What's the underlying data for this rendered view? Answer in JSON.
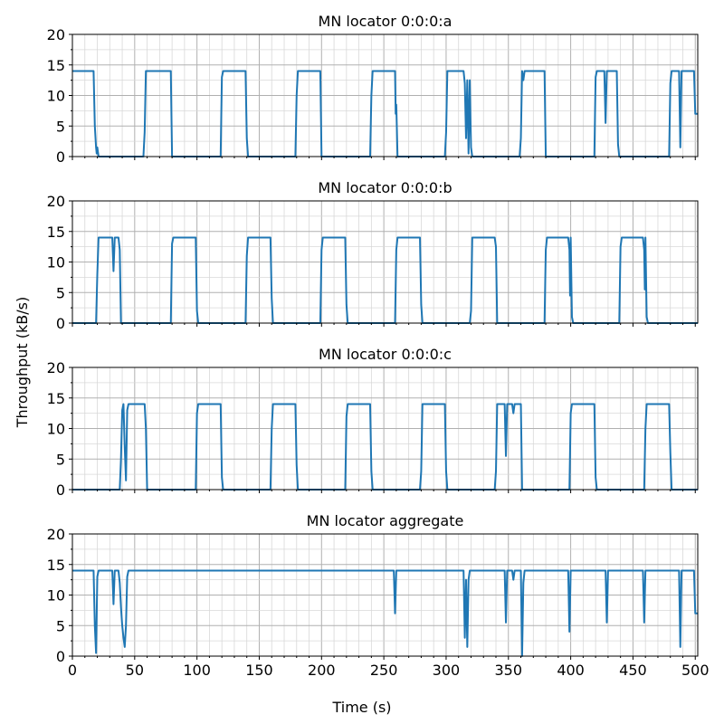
{
  "figure": {
    "ylabel": "Throughput (kB/s)",
    "xlabel": "Time (s)"
  },
  "chart_data": [
    {
      "type": "line",
      "title": "MN locator 0:0:0:a",
      "xlim": [
        0,
        502
      ],
      "ylim": [
        0,
        20
      ],
      "xticks": [
        0,
        50,
        100,
        150,
        200,
        250,
        300,
        350,
        400,
        450,
        500
      ],
      "yticks": [
        0,
        5,
        10,
        15,
        20
      ],
      "grid": true,
      "show_xtick_labels": false,
      "series": [
        {
          "color": "#1f77b4",
          "x": [
            0,
            17,
            18,
            19,
            19.5,
            20,
            21,
            57,
            58,
            59,
            79,
            80,
            119,
            120,
            121,
            139,
            140,
            141,
            179,
            180,
            181,
            199,
            200,
            239,
            240,
            241,
            259,
            259.5,
            260,
            261,
            299,
            300,
            301,
            314,
            315,
            316,
            317,
            318,
            319,
            320,
            321,
            359,
            360,
            361,
            362,
            363,
            364,
            379,
            380,
            419,
            420,
            421,
            427,
            428,
            429,
            430,
            431,
            437,
            438,
            439,
            479,
            480,
            481,
            487,
            488,
            489,
            490,
            491,
            499,
            500,
            502
          ],
          "y": [
            14,
            14,
            5,
            1.5,
            0.5,
            1.5,
            0,
            0,
            4,
            14,
            14,
            0,
            0,
            13,
            14,
            14,
            3,
            0,
            0,
            10,
            14,
            14,
            0,
            0,
            10,
            14,
            14,
            7,
            8.5,
            0,
            0,
            4,
            14,
            14,
            12,
            3,
            12.5,
            0.5,
            12.5,
            1.5,
            0,
            0,
            3,
            14,
            12.5,
            14,
            14,
            14,
            0,
            0,
            13,
            14,
            14,
            5.5,
            14,
            14,
            14,
            14,
            2,
            0,
            0,
            12,
            14,
            14,
            1.5,
            14,
            14,
            14,
            14,
            7,
            7
          ]
        }
      ]
    },
    {
      "type": "line",
      "title": "MN locator 0:0:0:b",
      "xlim": [
        0,
        502
      ],
      "ylim": [
        0,
        20
      ],
      "xticks": [
        0,
        50,
        100,
        150,
        200,
        250,
        300,
        350,
        400,
        450,
        500
      ],
      "yticks": [
        0,
        5,
        10,
        15,
        20
      ],
      "grid": true,
      "show_xtick_labels": false,
      "series": [
        {
          "color": "#1f77b4",
          "x": [
            0,
            19,
            20,
            21,
            32,
            33,
            34,
            35,
            37,
            38,
            39,
            79,
            80,
            81,
            99,
            100,
            101,
            139,
            140,
            141,
            159,
            160,
            161,
            199,
            200,
            201,
            219,
            220,
            221,
            259,
            260,
            261,
            279,
            280,
            281,
            319,
            320,
            321,
            339,
            340,
            341,
            379,
            380,
            381,
            398,
            399,
            399.5,
            400,
            401,
            402,
            439,
            440,
            441,
            458,
            459,
            459.5,
            460,
            461,
            462,
            502
          ],
          "y": [
            0,
            0,
            8,
            14,
            14,
            8.5,
            14,
            14,
            14,
            12,
            0,
            0,
            13,
            14,
            14,
            2,
            0,
            0,
            11,
            14,
            14,
            4,
            0,
            0,
            12,
            14,
            14,
            3,
            0,
            0,
            12,
            14,
            14,
            3,
            0,
            0,
            2,
            14,
            14,
            12.5,
            0,
            0,
            12,
            14,
            14,
            12,
            4.5,
            14,
            1,
            0,
            0,
            12.5,
            14,
            14,
            12,
            5.5,
            14,
            1,
            0,
            0
          ]
        }
      ]
    },
    {
      "type": "line",
      "title": "MN locator 0:0:0:c",
      "xlim": [
        0,
        502
      ],
      "ylim": [
        0,
        20
      ],
      "xticks": [
        0,
        50,
        100,
        150,
        200,
        250,
        300,
        350,
        400,
        450,
        500
      ],
      "yticks": [
        0,
        5,
        10,
        15,
        20
      ],
      "grid": true,
      "show_xtick_labels": false,
      "series": [
        {
          "color": "#1f77b4",
          "x": [
            0,
            38,
            39,
            40,
            41,
            42,
            43,
            44,
            45,
            58,
            59,
            60,
            99,
            100,
            101,
            119,
            120,
            121,
            159,
            160,
            161,
            179,
            180,
            181,
            219,
            220,
            221,
            239,
            240,
            241,
            279,
            280,
            281,
            299,
            300,
            301,
            339,
            340,
            341,
            347,
            348,
            349,
            350,
            353,
            354,
            355,
            359,
            360,
            361,
            399,
            400,
            401,
            419,
            420,
            421,
            459,
            460,
            461,
            479,
            480,
            481,
            502
          ],
          "y": [
            0,
            0,
            5,
            13,
            14,
            7,
            1.5,
            13,
            14,
            14,
            10,
            0,
            0,
            12.5,
            14,
            14,
            2,
            0,
            0,
            10,
            14,
            14,
            4,
            0,
            0,
            12,
            14,
            14,
            3,
            0,
            0,
            3,
            14,
            14,
            3,
            0,
            0,
            3,
            14,
            14,
            5.5,
            14,
            14,
            14,
            12.5,
            14,
            14,
            14,
            0,
            0,
            12.5,
            14,
            14,
            2,
            0,
            0,
            10,
            14,
            14,
            6,
            0,
            0
          ]
        }
      ]
    },
    {
      "type": "line",
      "title": "MN locator aggregate",
      "xlim": [
        0,
        502
      ],
      "ylim": [
        0,
        20
      ],
      "xticks": [
        0,
        50,
        100,
        150,
        200,
        250,
        300,
        350,
        400,
        450,
        500
      ],
      "yticks": [
        0,
        5,
        10,
        15,
        20
      ],
      "grid": true,
      "show_xtick_labels": true,
      "series": [
        {
          "color": "#1f77b4",
          "x": [
            0,
            17,
            18,
            19,
            20,
            21,
            32,
            33,
            34,
            37,
            38,
            39,
            40,
            41,
            42,
            43,
            44,
            45,
            258,
            259,
            260,
            261,
            314,
            315,
            316,
            317,
            318,
            319,
            320,
            321,
            347,
            348,
            349,
            350,
            353,
            354,
            355,
            360,
            361,
            362,
            363,
            364,
            398,
            399,
            400,
            401,
            428,
            429,
            430,
            431,
            458,
            459,
            460,
            461,
            487,
            488,
            489,
            490,
            499,
            500,
            502
          ],
          "y": [
            14,
            14,
            5,
            0.5,
            13,
            14,
            14,
            8.5,
            14,
            14,
            12,
            8,
            5,
            3,
            1.5,
            5,
            13,
            14,
            14,
            7,
            14,
            14,
            14,
            3,
            12.5,
            1.5,
            12.5,
            14,
            14,
            14,
            14,
            5.5,
            14,
            14,
            14,
            12.5,
            14,
            14,
            0,
            12,
            14,
            14,
            14,
            4,
            14,
            14,
            14,
            5.5,
            14,
            14,
            14,
            5.5,
            14,
            14,
            14,
            1.5,
            14,
            14,
            14,
            7,
            7
          ]
        }
      ]
    }
  ]
}
